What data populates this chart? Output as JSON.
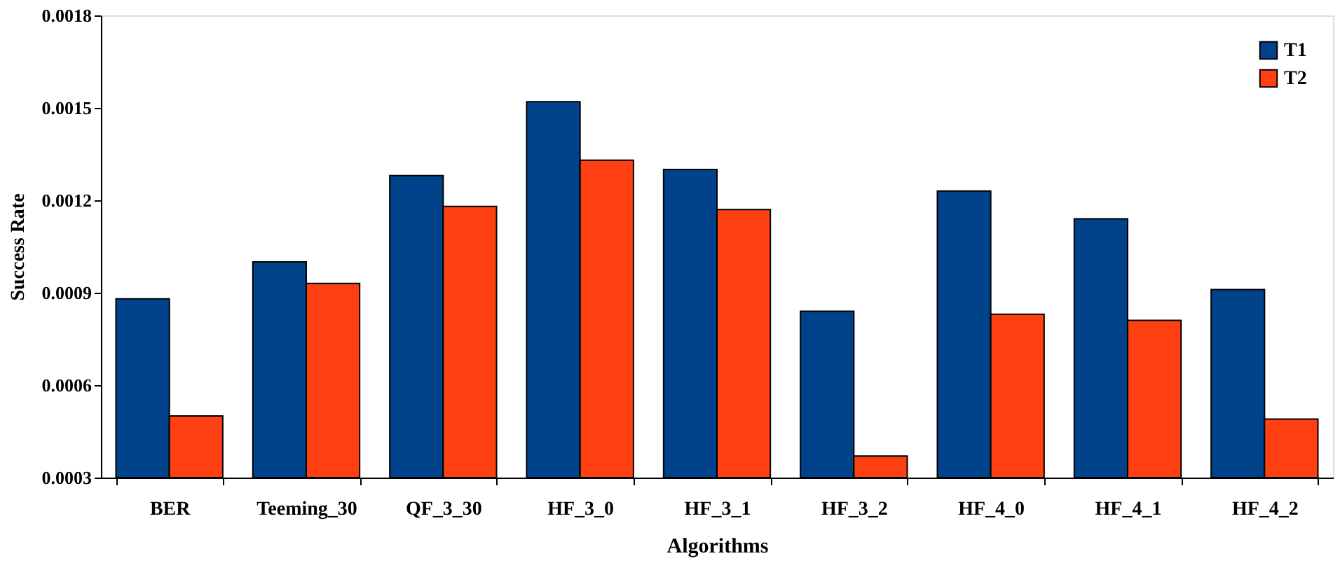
{
  "chart_data": {
    "type": "bar",
    "xlabel": "Algorithms",
    "ylabel": "Success Rate",
    "categories": [
      "BER",
      "Teeming_30",
      "QF_3_30",
      "HF_3_0",
      "HF_3_1",
      "HF_3_2",
      "HF_4_0",
      "HF_4_1",
      "HF_4_2"
    ],
    "series": [
      {
        "name": "T1",
        "color": "#00438a",
        "values": [
          0.00088,
          0.001,
          0.00128,
          0.00152,
          0.0013,
          0.00084,
          0.00123,
          0.00114,
          0.00091
        ]
      },
      {
        "name": "T2",
        "color": "#ff4012",
        "values": [
          0.0005,
          0.00093,
          0.00118,
          0.00133,
          0.00117,
          0.00037,
          0.00083,
          0.00081,
          0.00049
        ]
      }
    ],
    "ylim": [
      0.0003,
      0.0018
    ],
    "yticks": [
      0.0003,
      0.0006,
      0.0009,
      0.0012,
      0.0015,
      0.0018
    ],
    "grid": false,
    "legend": "top right"
  }
}
